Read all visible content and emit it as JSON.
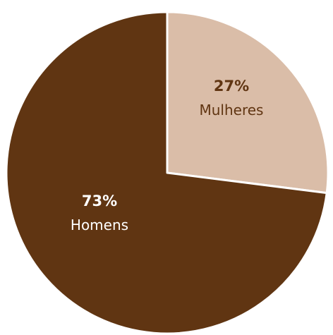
{
  "chart_data": {
    "type": "pie",
    "slices": [
      {
        "label": "Mulheres",
        "value": 27,
        "value_label": "27%",
        "color": "#dabda8",
        "label_color": "#603512"
      },
      {
        "label": "Homens",
        "value": 73,
        "value_label": "73%",
        "color": "#603512",
        "label_color": "#ffffff"
      }
    ],
    "start": "top",
    "direction": "clockwise"
  }
}
